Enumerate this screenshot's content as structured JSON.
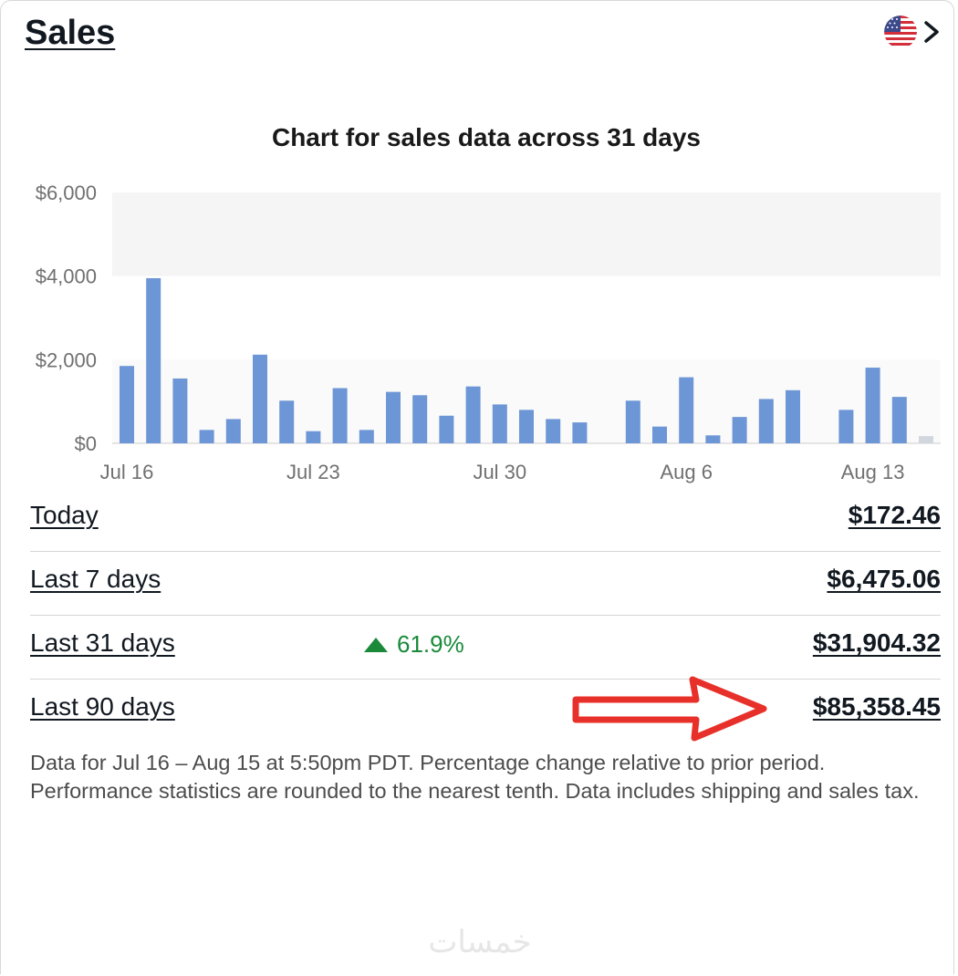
{
  "header": {
    "title": "Sales",
    "region_icon": "us-flag-icon",
    "chevron_icon": "chevron-right-icon"
  },
  "chart_data": {
    "type": "bar",
    "title": "Chart for sales data across 31 days",
    "xlabel": "",
    "ylabel": "",
    "ylim": [
      0,
      6000
    ],
    "yticks": [
      "$0",
      "$2,000",
      "$4,000",
      "$6,000"
    ],
    "xtick_labels": [
      "Jul 16",
      "Jul 23",
      "Jul 30",
      "Aug 6",
      "Aug 13"
    ],
    "categories": [
      "Jul 16",
      "Jul 17",
      "Jul 18",
      "Jul 19",
      "Jul 20",
      "Jul 21",
      "Jul 22",
      "Jul 23",
      "Jul 24",
      "Jul 25",
      "Jul 26",
      "Jul 27",
      "Jul 28",
      "Jul 29",
      "Jul 30",
      "Jul 31",
      "Aug 1",
      "Aug 2",
      "Aug 3",
      "Aug 4",
      "Aug 5",
      "Aug 6",
      "Aug 7",
      "Aug 8",
      "Aug 9",
      "Aug 10",
      "Aug 11",
      "Aug 12",
      "Aug 13",
      "Aug 14",
      "Aug 15"
    ],
    "values": [
      1850,
      3950,
      1550,
      320,
      580,
      2120,
      1020,
      290,
      1320,
      320,
      1230,
      1150,
      660,
      1360,
      930,
      800,
      580,
      500,
      0,
      1020,
      400,
      1580,
      190,
      630,
      1060,
      1270,
      0,
      800,
      1810,
      1110,
      172.46
    ],
    "colors": {
      "bar": "#6d96d6",
      "today_bar": "#d2d7df",
      "band": "#f5f5f5"
    },
    "grid": false
  },
  "summary": {
    "rows": [
      {
        "label": "Today",
        "value": "$172.46",
        "change": ""
      },
      {
        "label": "Last 7 days",
        "value": "$6,475.06",
        "change": ""
      },
      {
        "label": "Last 31 days",
        "value": "$31,904.32",
        "change": "61.9%"
      },
      {
        "label": "Last 90 days",
        "value": "$85,358.45",
        "change": ""
      }
    ],
    "change_color": "#1a8a3a"
  },
  "footnote": "Data for Jul 16 – Aug 15 at 5:50pm PDT. Percentage change relative to prior period. Performance statistics are rounded to the nearest tenth. Data includes shipping and sales tax.",
  "annotation": {
    "arrow_color": "#e8302a",
    "icon": "red-arrow-icon"
  },
  "watermark": "خمسات"
}
